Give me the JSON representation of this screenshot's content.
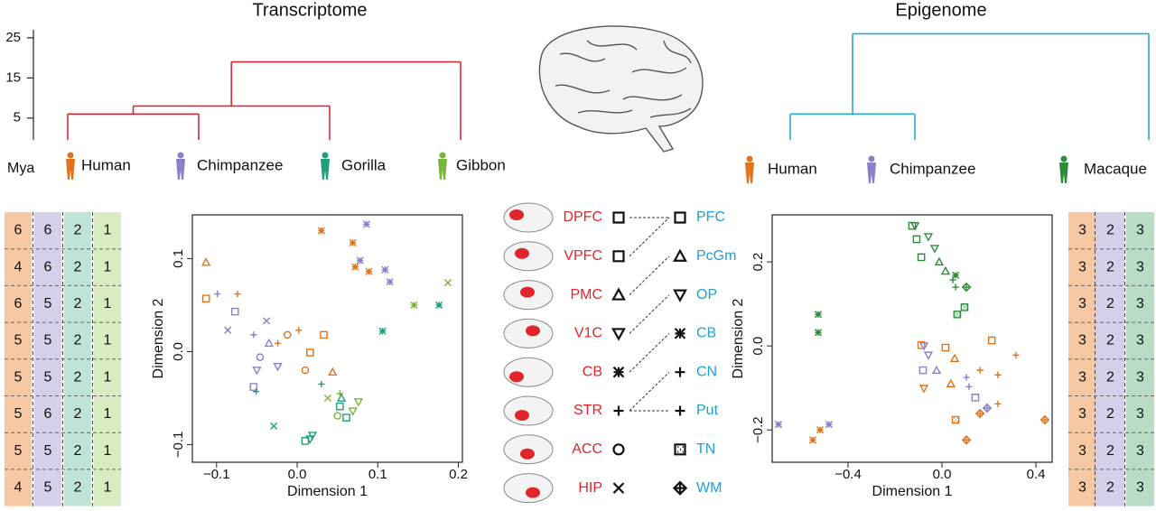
{
  "trees": [
    {
      "title": "Transcriptome",
      "ylabel": "Mya",
      "ylim": [
        0,
        27
      ],
      "yticks": [
        5,
        15,
        25
      ],
      "color": "#d42a3c",
      "root": {
        "height": 19,
        "children": [
          {
            "height": 8,
            "children": [
              {
                "height": 6,
                "children": [
                  {
                    "leaf": "Human",
                    "color": "#e0731c"
                  },
                  {
                    "leaf": "Chimpanzee",
                    "color": "#8a80c8"
                  }
                ]
              },
              {
                "leaf": "Gorilla",
                "color": "#1e9e7e"
              }
            ]
          },
          {
            "leaf": "Gibbon",
            "color": "#7ab43a"
          }
        ]
      }
    },
    {
      "title": "Epigenome",
      "ylim": [
        0,
        27
      ],
      "color": "#2aa8d6",
      "root": {
        "height": 26,
        "children": [
          {
            "height": 6,
            "children": [
              {
                "leaf": "Human",
                "color": "#e0731c"
              },
              {
                "leaf": "Chimpanzee",
                "color": "#8a80c8"
              }
            ]
          },
          {
            "leaf": "Macaque",
            "color": "#2e8b3e"
          }
        ]
      }
    }
  ],
  "chart_data": [
    {
      "type": "scatter",
      "xlabel": "Dimension 1",
      "ylabel": "Dimension 2",
      "xlim": [
        -0.13,
        0.205
      ],
      "ylim": [
        -0.119,
        0.147
      ],
      "xticks": [
        {
          "value": -0.1,
          "label": "−0.1"
        },
        {
          "value": 0,
          "label": "0.0"
        },
        0.1,
        0.2
      ],
      "yticks": [
        {
          "value": -0.1,
          "label": "−0.1"
        },
        {
          "value": 0,
          "label": "0.0"
        },
        0.1
      ],
      "series": [
        {
          "color": "#e0731c",
          "markers": [
            "asterisk",
            "asterisk",
            "asterisk",
            "asterisk",
            "triangle",
            "square",
            "square",
            "square",
            "plus",
            "plus",
            "plus",
            "circle",
            "circle",
            "triangle"
          ],
          "x": [
            0.03,
            0.069,
            0.072,
            0.089,
            -0.113,
            -0.113,
            0.033,
            0.016,
            -0.074,
            0.002,
            -0.024,
            -0.012,
            0.01,
            0.044
          ],
          "values": [
            0.13,
            0.117,
            0.091,
            0.086,
            0.096,
            0.057,
            0.018,
            -0.001,
            0.062,
            0.023,
            0.009,
            0.018,
            -0.02,
            -0.022
          ]
        },
        {
          "color": "#8a80c8",
          "markers": [
            "asterisk",
            "asterisk",
            "asterisk",
            "asterisk",
            "plus",
            "plus",
            "cross",
            "cross",
            "square",
            "square",
            "tridown",
            "tridown",
            "circle",
            "triangle"
          ],
          "x": [
            0.086,
            0.078,
            0.109,
            0.115,
            -0.099,
            -0.054,
            -0.086,
            -0.038,
            -0.077,
            -0.054,
            -0.05,
            -0.024,
            -0.046,
            -0.035
          ],
          "values": [
            0.137,
            0.098,
            0.088,
            0.075,
            0.062,
            0.018,
            0.023,
            0.033,
            0.043,
            -0.038,
            -0.02,
            -0.016,
            -0.006,
            0.009
          ]
        },
        {
          "color": "#1e9e7e",
          "markers": [
            "asterisk",
            "asterisk",
            "cross",
            "tridown",
            "tridown",
            "square",
            "square",
            "square",
            "plus",
            "plus",
            "triangle"
          ],
          "x": [
            0.106,
            0.176,
            -0.029,
            0.019,
            0.016,
            0.01,
            0.053,
            0.061,
            -0.051,
            0.03,
            0.055
          ],
          "values": [
            0.022,
            0.05,
            -0.08,
            -0.09,
            -0.094,
            -0.096,
            -0.059,
            -0.071,
            -0.043,
            -0.035,
            -0.05
          ]
        },
        {
          "color": "#7ab43a",
          "markers": [
            "cross",
            "asterisk",
            "plus",
            "tridown",
            "tridown",
            "circle",
            "cross"
          ],
          "x": [
            0.187,
            0.145,
            0.053,
            0.076,
            0.069,
            0.05,
            0.038
          ],
          "values": [
            0.074,
            0.05,
            -0.045,
            -0.054,
            -0.064,
            -0.069,
            -0.05
          ]
        }
      ]
    },
    {
      "type": "scatter",
      "xlabel": "Dimension 1",
      "ylabel": "Dimension 2",
      "xlim": [
        -0.723,
        0.469
      ],
      "ylim": [
        -0.277,
        0.312
      ],
      "xticks": [
        {
          "value": -0.4,
          "label": "−0.4"
        },
        {
          "value": 0,
          "label": "0.0"
        },
        0.4
      ],
      "yticks": [
        {
          "value": -0.2,
          "label": "−0.2"
        },
        {
          "value": 0,
          "label": "0.0"
        },
        0.2
      ],
      "series": [
        {
          "color": "#2e8b3e",
          "markers": [
            "square",
            "square",
            "square",
            "tridown",
            "tridown",
            "tridown",
            "triangle",
            "triangle",
            "asterisk",
            "asterisk",
            "asterisk",
            "plus",
            "plus",
            "diamond",
            "dsquare",
            "dsquare"
          ],
          "x": [
            -0.127,
            -0.108,
            -0.088,
            -0.115,
            -0.058,
            -0.031,
            -0.012,
            0.015,
            -0.527,
            -0.527,
            0.058,
            0.058,
            0.046,
            0.104,
            0.065,
            0.096
          ],
          "values": [
            0.286,
            0.254,
            0.211,
            0.286,
            0.26,
            0.232,
            0.2,
            0.178,
            0.075,
            0.032,
            0.168,
            0.14,
            0.157,
            0.14,
            0.075,
            0.092
          ]
        },
        {
          "color": "#e0731c",
          "markers": [
            "square",
            "square",
            "square",
            "triangle",
            "triangle",
            "tridown",
            "plus",
            "plus",
            "plus",
            "plus",
            "asterisk",
            "asterisk",
            "dsquare",
            "diamond",
            "diamond",
            "diamond"
          ],
          "x": [
            -0.088,
            0.212,
            0.015,
            0.054,
            0.038,
            -0.077,
            0.315,
            0.238,
            0.162,
            0.238,
            -0.519,
            -0.55,
            0.058,
            0.104,
            0.438,
            0.162
          ],
          "values": [
            0.002,
            0.013,
            -0.004,
            -0.03,
            -0.09,
            -0.101,
            -0.022,
            -0.069,
            -0.058,
            -0.138,
            -0.2,
            -0.224,
            -0.176,
            -0.224,
            -0.176,
            -0.161
          ]
        },
        {
          "color": "#8a80c8",
          "markers": [
            "tridown",
            "tridown",
            "square",
            "triangle",
            "plus",
            "plus",
            "square",
            "diamond",
            "asterisk",
            "asterisk"
          ],
          "x": [
            -0.077,
            -0.058,
            -0.081,
            -0.023,
            0.104,
            0.115,
            0.142,
            0.192,
            -0.696,
            -0.481
          ],
          "values": [
            0,
            -0.022,
            -0.058,
            -0.058,
            -0.075,
            -0.097,
            -0.123,
            -0.148,
            -0.187,
            -0.187
          ]
        }
      ]
    }
  ],
  "legend": {
    "left": [
      {
        "label": "DPFC",
        "marker": "square"
      },
      {
        "label": "VPFC",
        "marker": "square"
      },
      {
        "label": "PMC",
        "marker": "triangle"
      },
      {
        "label": "V1C",
        "marker": "tridown"
      },
      {
        "label": "CB",
        "marker": "asterisk"
      },
      {
        "label": "STR",
        "marker": "plus"
      },
      {
        "label": "ACC",
        "marker": "circle"
      },
      {
        "label": "HIP",
        "marker": "cross"
      }
    ],
    "right": [
      {
        "label": "PFC",
        "marker": "square"
      },
      {
        "label": "PcGm",
        "marker": "triangle"
      },
      {
        "label": "OP",
        "marker": "tridown"
      },
      {
        "label": "CB",
        "marker": "asterisk"
      },
      {
        "label": "CN",
        "marker": "plus"
      },
      {
        "label": "Put",
        "marker": "plus"
      },
      {
        "label": "TN",
        "marker": "dsquare"
      },
      {
        "label": "WM",
        "marker": "diamond"
      }
    ],
    "left_color": "#e0262a",
    "right_color": "#1e9fd6",
    "links": [
      {
        "from": 0,
        "to": 0
      },
      {
        "from": 1,
        "to": 0
      },
      {
        "from": 2,
        "to": 1
      },
      {
        "from": 3,
        "to": 2
      },
      {
        "from": 4,
        "to": 3
      },
      {
        "from": 5,
        "to": 4
      },
      {
        "from": 5,
        "to": 5
      }
    ]
  },
  "tables": [
    {
      "column_colors": [
        "#f6c9a4",
        "#d5cfea",
        "#bfe4d6",
        "#d9ecc1"
      ],
      "rows": [
        [
          6,
          6,
          2,
          1
        ],
        [
          4,
          6,
          2,
          1
        ],
        [
          6,
          5,
          2,
          1
        ],
        [
          5,
          5,
          2,
          1
        ],
        [
          5,
          5,
          2,
          1
        ],
        [
          5,
          6,
          2,
          1
        ],
        [
          5,
          5,
          2,
          1
        ],
        [
          4,
          5,
          2,
          1
        ]
      ]
    },
    {
      "column_colors": [
        "#f6c9a4",
        "#d5cfea",
        "#b8dcc6"
      ],
      "rows": [
        [
          3,
          2,
          3
        ],
        [
          3,
          2,
          3
        ],
        [
          3,
          2,
          3
        ],
        [
          3,
          2,
          3
        ],
        [
          3,
          2,
          3
        ],
        [
          3,
          2,
          3
        ],
        [
          3,
          2,
          3
        ],
        [
          3,
          2,
          3
        ]
      ]
    }
  ]
}
